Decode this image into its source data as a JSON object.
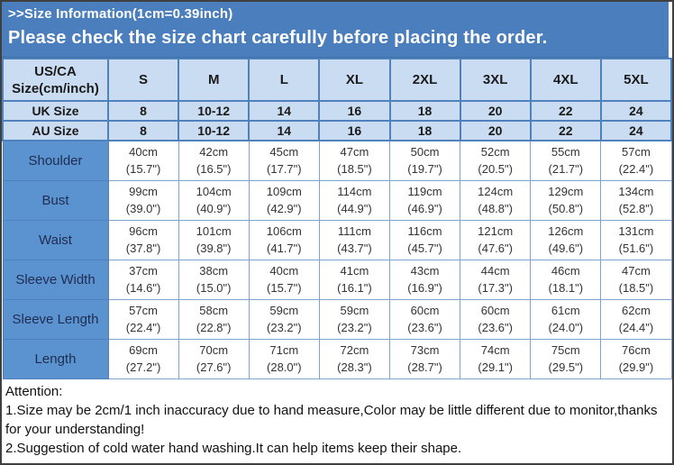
{
  "header": {
    "title": ">>Size Information(1cm=0.39inch)",
    "subtitle": "Please check the size chart carefully before placing the order."
  },
  "table": {
    "corner": {
      "line1": "US/CA",
      "line2": "Size(cm/inch)"
    },
    "size_columns": [
      "S",
      "M",
      "L",
      "XL",
      "2XL",
      "3XL",
      "4XL",
      "5XL"
    ],
    "uk_row": {
      "label": "UK Size",
      "values": [
        "8",
        "10-12",
        "14",
        "16",
        "18",
        "20",
        "22",
        "24"
      ]
    },
    "au_row": {
      "label": "AU Size",
      "values": [
        "8",
        "10-12",
        "14",
        "16",
        "18",
        "20",
        "22",
        "24"
      ]
    },
    "measurement_rows": [
      {
        "label": "Shoulder",
        "values": [
          "40cm\n(15.7\")",
          "42cm\n(16.5\")",
          "45cm\n(17.7\")",
          "47cm\n(18.5\")",
          "50cm\n(19.7\")",
          "52cm\n(20.5\")",
          "55cm\n(21.7\")",
          "57cm\n(22.4\")"
        ]
      },
      {
        "label": "Bust",
        "values": [
          "99cm\n(39.0\")",
          "104cm\n(40.9\")",
          "109cm\n(42.9\")",
          "114cm\n(44.9\")",
          "119cm\n(46.9\")",
          "124cm\n(48.8\")",
          "129cm\n(50.8\")",
          "134cm\n(52.8\")"
        ]
      },
      {
        "label": "Waist",
        "values": [
          "96cm\n(37.8\")",
          "101cm\n(39.8\")",
          "106cm\n(41.7\")",
          "111cm\n(43.7\")",
          "116cm\n(45.7\")",
          "121cm\n(47.6\")",
          "126cm\n(49.6\")",
          "131cm\n(51.6\")"
        ]
      },
      {
        "label": "Sleeve Width",
        "values": [
          "37cm\n(14.6\")",
          "38cm\n(15.0\")",
          "40cm\n(15.7\")",
          "41cm\n(16.1\")",
          "43cm\n(16.9\")",
          "44cm\n(17.3\")",
          "46cm\n(18.1\")",
          "47cm\n(18.5\")"
        ]
      },
      {
        "label": "Sleeve Length",
        "values": [
          "57cm\n(22.4\")",
          "58cm\n(22.8\")",
          "59cm\n(23.2\")",
          "59cm\n(23.2\")",
          "60cm\n(23.6\")",
          "60cm\n(23.6\")",
          "61cm\n(24.0\")",
          "62cm\n(24.4\")"
        ]
      },
      {
        "label": "Length",
        "values": [
          "69cm\n(27.2\")",
          "70cm\n(27.6\")",
          "71cm\n(28.0\")",
          "72cm\n(28.3\")",
          "73cm\n(28.7\")",
          "74cm\n(29.1\")",
          "75cm\n(29.5\")",
          "76cm\n(29.9\")"
        ]
      }
    ]
  },
  "attention": {
    "heading": "Attention:",
    "note1": "1.Size may be 2cm/1 inch inaccuracy due to hand measure,Color may be little different due to monitor,thanks for your understanding!",
    "note2": "2.Suggestion of cold water hand washing.It can help items keep their shape."
  },
  "colors": {
    "band_blue": "#4a7ebc",
    "header_row_bg": "#c9dcf1",
    "label_column_bg": "#5b92d0",
    "grid_line": "#4f81bd",
    "band_text": "#ffffff",
    "table_text": "#1a1a1a",
    "body_bg": "#ffffff"
  }
}
